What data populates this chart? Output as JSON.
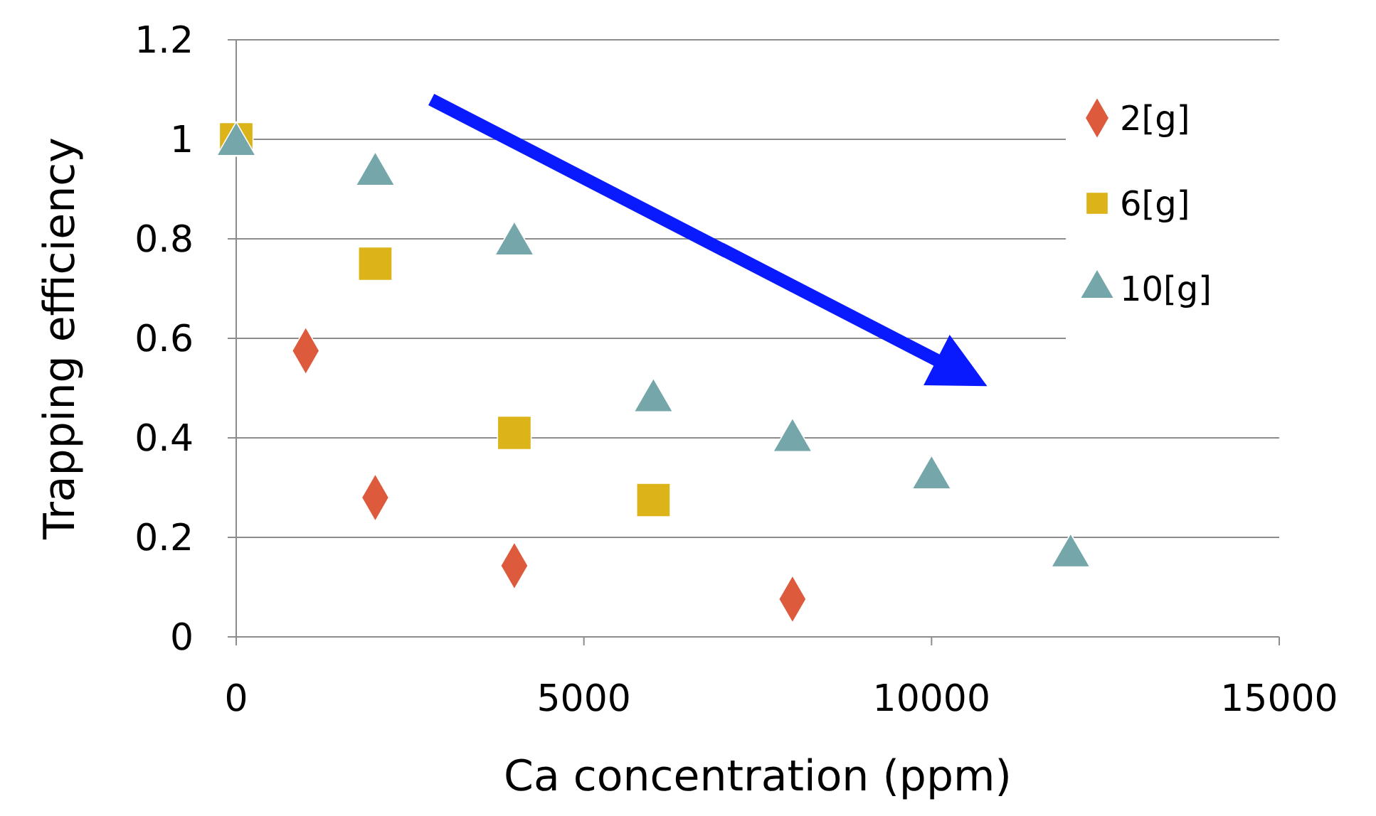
{
  "chart_data": {
    "type": "scatter",
    "xlabel": "Ca concentration (ppm)",
    "ylabel": "Trapping efficiency",
    "xlim": [
      0,
      15000
    ],
    "xticks": [
      0,
      5000,
      10000,
      15000
    ],
    "ylim": [
      0,
      1.2
    ],
    "yticks": [
      0,
      0.2,
      0.4,
      0.6,
      0.8,
      1,
      1.2
    ],
    "grid": "y",
    "legend": "top right",
    "series": [
      {
        "name": "2[g]",
        "color": "#dd5a3c",
        "marker": "diamond",
        "x": [
          1000,
          2000,
          4000,
          8000
        ],
        "values": [
          0.575,
          0.28,
          0.143,
          0.076
        ]
      },
      {
        "name": "6[g]",
        "color": "#dcb41a",
        "marker": "square",
        "x": [
          0,
          2000,
          4000,
          6000
        ],
        "values": [
          1.0,
          0.75,
          0.41,
          0.275
        ]
      },
      {
        "name": "10[g]",
        "color": "#74a6aa",
        "marker": "triangle",
        "x": [
          0,
          2000,
          4000,
          6000,
          8000,
          10000,
          12000
        ],
        "values": [
          0.99,
          0.93,
          0.79,
          0.475,
          0.395,
          0.32,
          0.163
        ]
      }
    ]
  }
}
